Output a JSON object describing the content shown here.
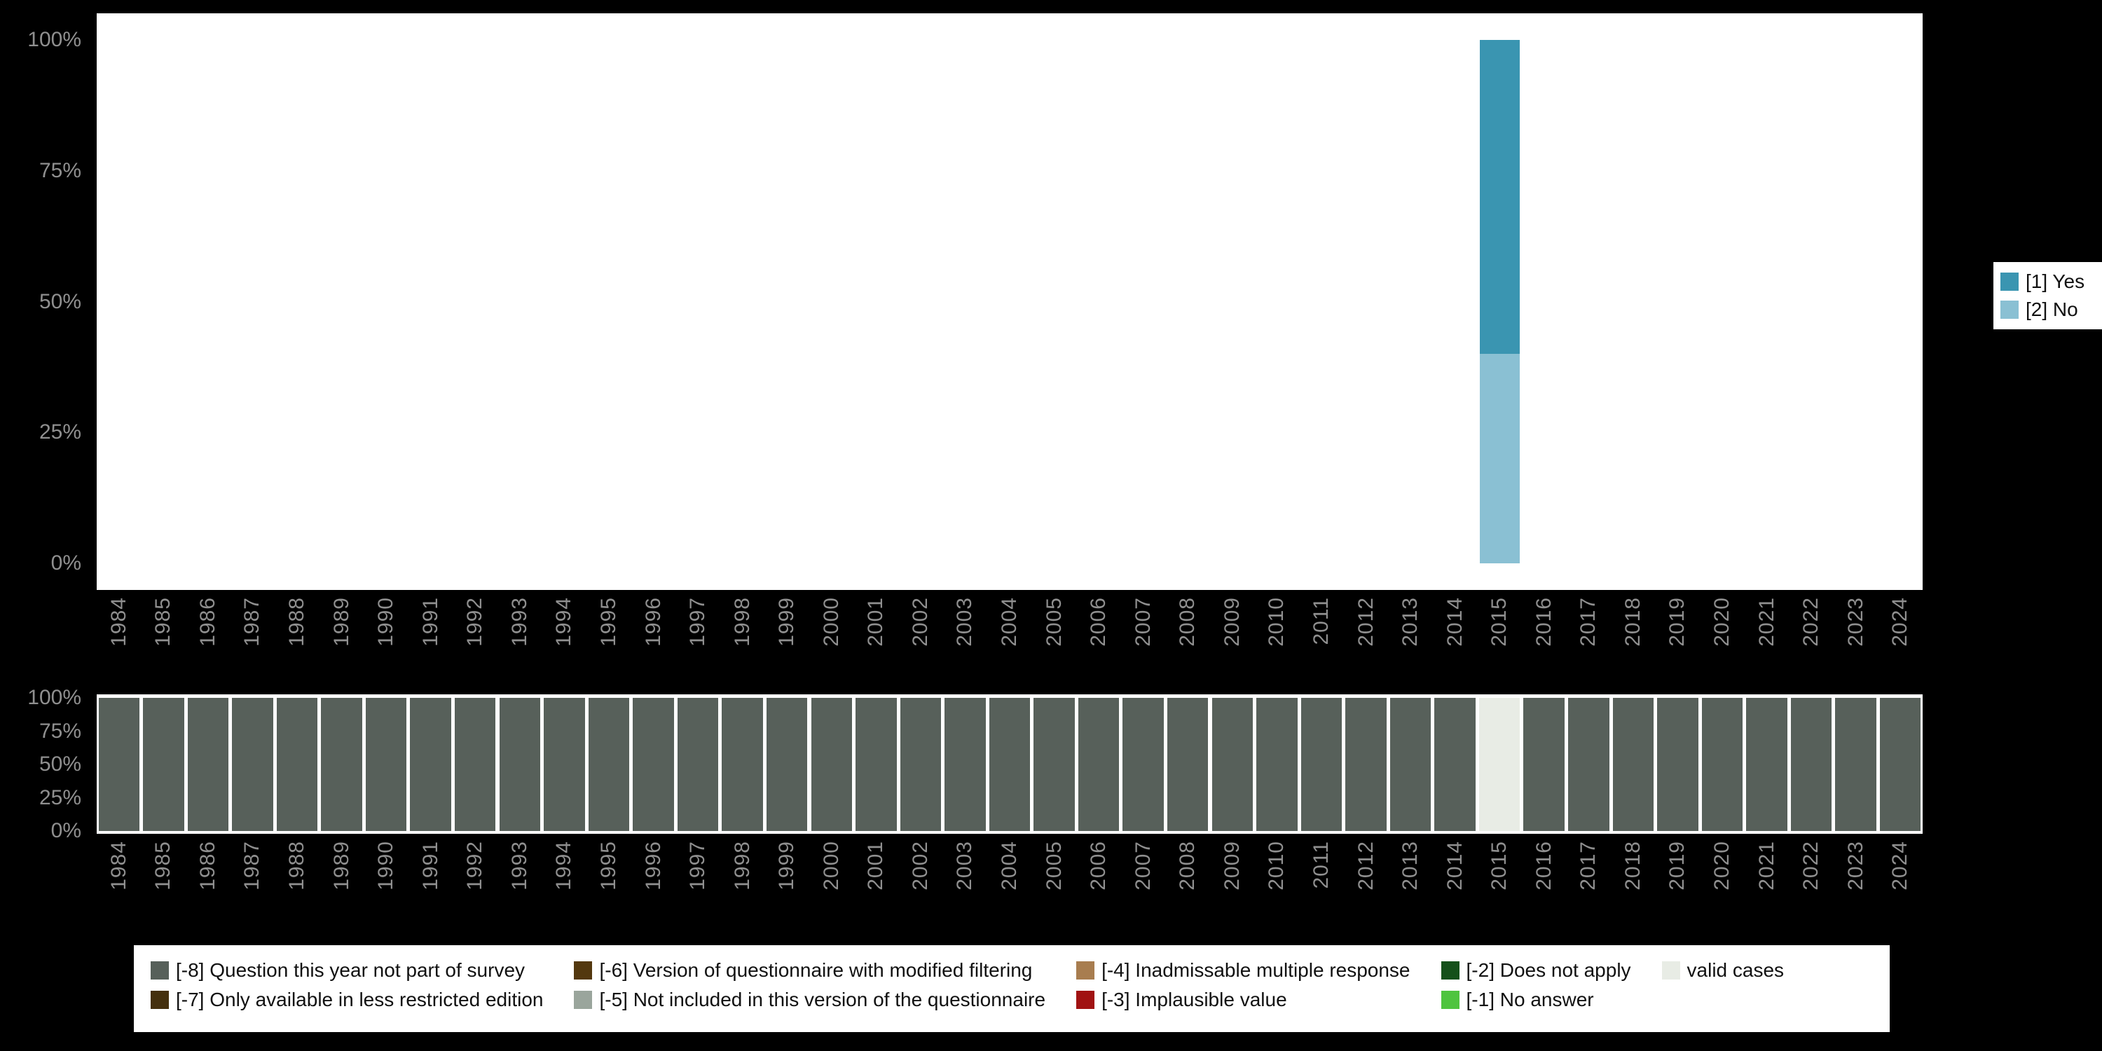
{
  "colors": {
    "background": "#000000",
    "panel": "#ffffff",
    "axis_text": "#8f8f8f",
    "yes": "#3a95b1",
    "no": "#8ac0d3",
    "not_part_of_survey": "#57605a",
    "valid_cases": "#e8ece5"
  },
  "years": [
    "1984",
    "1985",
    "1986",
    "1987",
    "1988",
    "1989",
    "1990",
    "1991",
    "1992",
    "1993",
    "1994",
    "1995",
    "1996",
    "1997",
    "1998",
    "1999",
    "2000",
    "2001",
    "2002",
    "2003",
    "2004",
    "2005",
    "2006",
    "2007",
    "2008",
    "2009",
    "2010",
    "2011",
    "2012",
    "2013",
    "2014",
    "2015",
    "2016",
    "2017",
    "2018",
    "2019",
    "2020",
    "2021",
    "2022",
    "2023",
    "2024"
  ],
  "percent_ticks": [
    {
      "label": "100%",
      "value": 100
    },
    {
      "label": "75%",
      "value": 75
    },
    {
      "label": "50%",
      "value": 50
    },
    {
      "label": "25%",
      "value": 25
    },
    {
      "label": "0%",
      "value": 0
    }
  ],
  "series_legend": {
    "items": [
      {
        "label": "[1] Yes",
        "color": "#3a95b1"
      },
      {
        "label": "[2] No",
        "color": "#8ac0d3"
      }
    ]
  },
  "missing_legend": {
    "columns": [
      [
        {
          "label": "[-8] Question this year not part of survey",
          "color": "#57605a"
        },
        {
          "label": "[-7] Only available in less restricted edition",
          "color": "#45300e"
        }
      ],
      [
        {
          "label": "[-6] Version of questionnaire with modified filtering",
          "color": "#53380f"
        },
        {
          "label": "[-5] Not included in this version of the questionnaire",
          "color": "#9aa59c"
        }
      ],
      [
        {
          "label": "[-4] Inadmissable multiple response",
          "color": "#a87d4f"
        },
        {
          "label": "[-3] Implausible value",
          "color": "#a11212"
        }
      ],
      [
        {
          "label": "[-2] Does not apply",
          "color": "#15501a"
        },
        {
          "label": "[-1] No answer",
          "color": "#4fc43f"
        }
      ],
      [
        {
          "label": "valid cases",
          "color": "#e8ece5"
        }
      ]
    ]
  },
  "chart_data": [
    {
      "type": "bar",
      "stacked": true,
      "title": "",
      "xlabel": "",
      "ylabel": "",
      "ylim": [
        0,
        100
      ],
      "grid": false,
      "legend_position": "right",
      "categories": [
        "1984",
        "1985",
        "1986",
        "1987",
        "1988",
        "1989",
        "1990",
        "1991",
        "1992",
        "1993",
        "1994",
        "1995",
        "1996",
        "1997",
        "1998",
        "1999",
        "2000",
        "2001",
        "2002",
        "2003",
        "2004",
        "2005",
        "2006",
        "2007",
        "2008",
        "2009",
        "2010",
        "2011",
        "2012",
        "2013",
        "2014",
        "2015",
        "2016",
        "2017",
        "2018",
        "2019",
        "2020",
        "2021",
        "2022",
        "2023",
        "2024"
      ],
      "series": [
        {
          "name": "[1] Yes",
          "color": "#3a95b1",
          "values": [
            0,
            0,
            0,
            0,
            0,
            0,
            0,
            0,
            0,
            0,
            0,
            0,
            0,
            0,
            0,
            0,
            0,
            0,
            0,
            0,
            0,
            0,
            0,
            0,
            0,
            0,
            0,
            0,
            0,
            0,
            0,
            60,
            0,
            0,
            0,
            0,
            0,
            0,
            0,
            0,
            0
          ]
        },
        {
          "name": "[2] No",
          "color": "#8ac0d3",
          "values": [
            0,
            0,
            0,
            0,
            0,
            0,
            0,
            0,
            0,
            0,
            0,
            0,
            0,
            0,
            0,
            0,
            0,
            0,
            0,
            0,
            0,
            0,
            0,
            0,
            0,
            0,
            0,
            0,
            0,
            0,
            0,
            40,
            0,
            0,
            0,
            0,
            0,
            0,
            0,
            0,
            0
          ]
        }
      ]
    },
    {
      "type": "bar",
      "stacked": true,
      "title": "",
      "xlabel": "",
      "ylabel": "",
      "ylim": [
        0,
        100
      ],
      "grid": false,
      "legend_position": "bottom",
      "categories": [
        "1984",
        "1985",
        "1986",
        "1987",
        "1988",
        "1989",
        "1990",
        "1991",
        "1992",
        "1993",
        "1994",
        "1995",
        "1996",
        "1997",
        "1998",
        "1999",
        "2000",
        "2001",
        "2002",
        "2003",
        "2004",
        "2005",
        "2006",
        "2007",
        "2008",
        "2009",
        "2010",
        "2011",
        "2012",
        "2013",
        "2014",
        "2015",
        "2016",
        "2017",
        "2018",
        "2019",
        "2020",
        "2021",
        "2022",
        "2023",
        "2024"
      ],
      "series": [
        {
          "name": "[-8] Question this year not part of survey",
          "color": "#57605a",
          "values": [
            100,
            100,
            100,
            100,
            100,
            100,
            100,
            100,
            100,
            100,
            100,
            100,
            100,
            100,
            100,
            100,
            100,
            100,
            100,
            100,
            100,
            100,
            100,
            100,
            100,
            100,
            100,
            100,
            100,
            100,
            100,
            0,
            100,
            100,
            100,
            100,
            100,
            100,
            100,
            100,
            100
          ]
        },
        {
          "name": "valid cases",
          "color": "#e8ece5",
          "values": [
            0,
            0,
            0,
            0,
            0,
            0,
            0,
            0,
            0,
            0,
            0,
            0,
            0,
            0,
            0,
            0,
            0,
            0,
            0,
            0,
            0,
            0,
            0,
            0,
            0,
            0,
            0,
            0,
            0,
            0,
            0,
            100,
            0,
            0,
            0,
            0,
            0,
            0,
            0,
            0,
            0
          ]
        }
      ]
    }
  ]
}
